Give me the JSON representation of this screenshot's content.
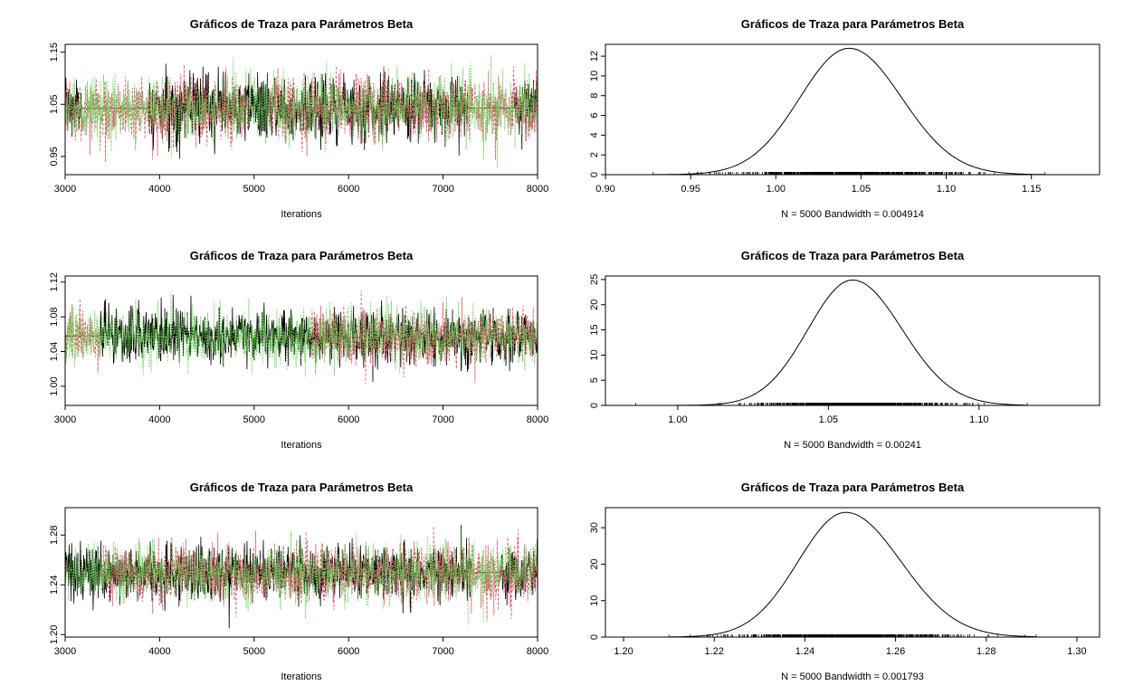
{
  "figure": {
    "title_common": "Gráficos de Traza para Parámetros Beta"
  },
  "colors": {
    "chain1": "#000000",
    "chain2": "#DF536B",
    "chain3": "#61D04F",
    "rug": "#000000",
    "baseline": "#BEBEBE"
  },
  "chart_data": [
    {
      "type": "line",
      "subtype": "trace",
      "title": "Gráficos de Traza para Parámetros Beta",
      "xlabel": "Iterations",
      "ylabel": "",
      "xlim": [
        3000,
        8000
      ],
      "ylim": [
        0.915,
        1.165
      ],
      "xticks": [
        3000,
        4000,
        5000,
        6000,
        7000,
        8000
      ],
      "yticks": [
        0.95,
        1.05,
        1.15
      ],
      "ytick_labels": [
        "0.95",
        "1.05",
        "1.15"
      ],
      "n_iterations": 5000,
      "series": [
        {
          "mean": 1.043,
          "sd": 0.031
        },
        {
          "mean": 1.043,
          "sd": 0.031
        },
        {
          "mean": 1.043,
          "sd": 0.031
        }
      ],
      "observed_min": 0.925,
      "observed_max": 1.16,
      "flat_segments": [
        {
          "series": 0,
          "x0": 3180,
          "x1": 3880,
          "y": 1.042
        },
        {
          "series": 0,
          "x0": 7260,
          "x1": 7760,
          "y": 1.043
        },
        {
          "series": 1,
          "x0": 4950,
          "x1": 5150,
          "y": 1.043
        }
      ],
      "grid": false
    },
    {
      "type": "line",
      "subtype": "density",
      "title": "Gráficos de Traza para Parámetros Beta",
      "xlabel": "N = 5000   Bandwidth = 0.004914",
      "ylabel": "",
      "xlim": [
        0.9,
        1.19
      ],
      "ylim": [
        0,
        13.2
      ],
      "xticks": [
        0.9,
        0.95,
        1.0,
        1.05,
        1.1,
        1.15
      ],
      "xtick_labels": [
        "0.90",
        "0.95",
        "1.00",
        "1.05",
        "1.10",
        "1.15"
      ],
      "yticks": [
        0,
        2,
        4,
        6,
        8,
        10,
        12
      ],
      "ytick_labels": [
        "0",
        "2",
        "4",
        "6",
        "8",
        "10",
        "12"
      ],
      "mode": 1.043,
      "peak": 12.8,
      "sd_left": 0.029,
      "sd_right": 0.031,
      "support": [
        0.928,
        1.158
      ],
      "grid": false
    },
    {
      "type": "line",
      "subtype": "trace",
      "title": "Gráficos de Traza para Parámetros Beta",
      "xlabel": "Iterations",
      "ylabel": "",
      "xlim": [
        3000,
        8000
      ],
      "ylim": [
        0.978,
        1.127
      ],
      "xticks": [
        3000,
        4000,
        5000,
        6000,
        7000,
        8000
      ],
      "yticks": [
        1.0,
        1.04,
        1.08,
        1.12
      ],
      "ytick_labels": [
        "1.00",
        "1.04",
        "1.08",
        "1.12"
      ],
      "n_iterations": 5000,
      "series": [
        {
          "mean": 1.057,
          "sd": 0.016
        },
        {
          "mean": 1.057,
          "sd": 0.016
        },
        {
          "mean": 1.057,
          "sd": 0.016
        }
      ],
      "observed_min": 0.985,
      "observed_max": 1.122,
      "flat_segments": [
        {
          "series": 0,
          "x0": 3010,
          "x1": 3370,
          "y": 1.058
        },
        {
          "series": 1,
          "x0": 3370,
          "x1": 5600,
          "y": 1.057
        }
      ],
      "grid": false
    },
    {
      "type": "line",
      "subtype": "density",
      "title": "Gráficos de Traza para Parámetros Beta",
      "xlabel": "N = 5000   Bandwidth = 0.00241",
      "ylabel": "",
      "xlim": [
        0.976,
        1.14
      ],
      "ylim": [
        0,
        25.7
      ],
      "xticks": [
        1.0,
        1.05,
        1.1
      ],
      "xtick_labels": [
        "1.00",
        "1.05",
        "1.10"
      ],
      "yticks": [
        0,
        5,
        10,
        15,
        20,
        25
      ],
      "ytick_labels": [
        "0",
        "5",
        "10",
        "15",
        "20",
        "25"
      ],
      "mode": 1.058,
      "peak": 24.9,
      "sd_left": 0.0148,
      "sd_right": 0.0165,
      "support": [
        0.986,
        1.116
      ],
      "grid": false
    },
    {
      "type": "line",
      "subtype": "trace",
      "title": "Gráficos de Traza para Parámetros Beta",
      "xlabel": "Iterations",
      "ylabel": "",
      "xlim": [
        3000,
        8000
      ],
      "ylim": [
        1.198,
        1.302
      ],
      "xticks": [
        3000,
        4000,
        5000,
        6000,
        7000,
        8000
      ],
      "yticks": [
        1.2,
        1.24,
        1.28
      ],
      "ytick_labels": [
        "1.20",
        "1.24",
        "1.28"
      ],
      "n_iterations": 5000,
      "series": [
        {
          "mean": 1.2495,
          "sd": 0.0115
        },
        {
          "mean": 1.2495,
          "sd": 0.0115
        },
        {
          "mean": 1.2495,
          "sd": 0.0115
        }
      ],
      "observed_min": 1.205,
      "observed_max": 1.295,
      "flat_segments": [
        {
          "series": 1,
          "x0": 3010,
          "x1": 3400,
          "y": 1.25
        },
        {
          "series": 0,
          "x0": 7300,
          "x1": 7600,
          "y": 1.25
        }
      ],
      "grid": false
    },
    {
      "type": "line",
      "subtype": "density",
      "title": "Gráficos de Traza para Parámetros Beta",
      "xlabel": "N = 5000   Bandwidth = 0.001793",
      "ylabel": "",
      "xlim": [
        1.196,
        1.305
      ],
      "ylim": [
        0,
        35.5
      ],
      "xticks": [
        1.2,
        1.22,
        1.24,
        1.26,
        1.28,
        1.3
      ],
      "xtick_labels": [
        "1.20",
        "1.22",
        "1.24",
        "1.26",
        "1.28",
        "1.30"
      ],
      "yticks": [
        0,
        10,
        20,
        30
      ],
      "ytick_labels": [
        "0",
        "10",
        "20",
        "30"
      ],
      "mode": 1.249,
      "peak": 34.2,
      "sd_left": 0.0105,
      "sd_right": 0.0122,
      "support": [
        1.21,
        1.291
      ],
      "grid": false
    }
  ]
}
